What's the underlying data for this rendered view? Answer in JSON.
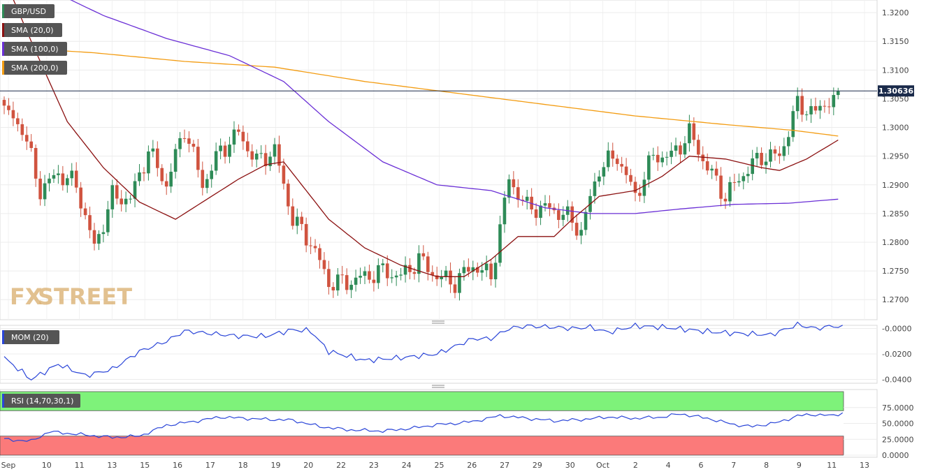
{
  "symbol": "GBP/USD",
  "indicators": {
    "sma20": {
      "label": "SMA (20,0)",
      "color": "#8b1010"
    },
    "sma100": {
      "label": "SMA (100,0)",
      "color": "#6a2fd6"
    },
    "sma200": {
      "label": "SMA (200,0)",
      "color": "#f39c12"
    },
    "mom": {
      "label": "MOM (20)",
      "color": "#2a45d8"
    },
    "rsi": {
      "label": "RSI (14,70,30,1)",
      "color": "#2a45d8"
    }
  },
  "watermark": {
    "fx": "FX",
    "street": "STREET"
  },
  "colors": {
    "up": "#2e8b57",
    "down": "#d0533f",
    "price_line": "#1a2a4a",
    "overbought": "#7ef27a",
    "oversold": "#fb7a7a"
  },
  "chart_data": [
    {
      "type": "candlestick",
      "title": "GBP/USD",
      "current_price": 1.30636,
      "current_price_label": "1.30636",
      "ylim": [
        1.2665,
        1.3222
      ],
      "y_ticks": [
        "1.3200",
        "1.3150",
        "1.3100",
        "1.3050",
        "1.3000",
        "1.2950",
        "1.2900",
        "1.2850",
        "1.2800",
        "1.2750",
        "1.2700"
      ],
      "x_ticks": [
        "Sep",
        "10",
        "11",
        "13",
        "15",
        "16",
        "17",
        "18",
        "19",
        "20",
        "22",
        "23",
        "24",
        "25",
        "26",
        "27",
        "29",
        "30",
        "Oct",
        "2",
        "4",
        "6",
        "7",
        "8",
        "9",
        "11",
        "13"
      ],
      "series_keypoints": {
        "close": [
          [
            0,
            1.303
          ],
          [
            4,
            1.3
          ],
          [
            8,
            1.289
          ],
          [
            12,
            1.292
          ],
          [
            16,
            1.29
          ],
          [
            20,
            1.279
          ],
          [
            24,
            1.288
          ],
          [
            28,
            1.2875
          ],
          [
            32,
            1.296
          ],
          [
            36,
            1.29
          ],
          [
            40,
            1.3
          ],
          [
            44,
            1.29
          ],
          [
            48,
            1.296
          ],
          [
            52,
            1.299
          ],
          [
            56,
            1.294
          ],
          [
            60,
            1.296
          ],
          [
            64,
            1.284
          ],
          [
            68,
            1.28
          ],
          [
            72,
            1.273
          ],
          [
            76,
            1.273
          ],
          [
            80,
            1.274
          ],
          [
            84,
            1.275
          ],
          [
            88,
            1.274
          ],
          [
            92,
            1.277
          ],
          [
            96,
            1.274
          ],
          [
            100,
            1.273
          ],
          [
            104,
            1.276
          ],
          [
            108,
            1.274
          ],
          [
            112,
            1.291
          ],
          [
            116,
            1.286
          ],
          [
            120,
            1.286
          ],
          [
            124,
            1.285
          ],
          [
            128,
            1.282
          ],
          [
            132,
            1.293
          ],
          [
            136,
            1.295
          ],
          [
            140,
            1.288
          ],
          [
            144,
            1.295
          ],
          [
            148,
            1.295
          ],
          [
            152,
            1.299
          ],
          [
            156,
            1.293
          ],
          [
            160,
            1.288
          ],
          [
            164,
            1.292
          ],
          [
            168,
            1.295
          ],
          [
            172,
            1.295
          ],
          [
            176,
            1.304
          ],
          [
            180,
            1.3025
          ],
          [
            183,
            1.305
          ],
          [
            185,
            1.3063
          ]
        ],
        "sma20": [
          [
            0,
            1.326
          ],
          [
            6,
            1.315
          ],
          [
            14,
            1.301
          ],
          [
            22,
            1.293
          ],
          [
            30,
            1.287
          ],
          [
            38,
            1.284
          ],
          [
            44,
            1.287
          ],
          [
            52,
            1.291
          ],
          [
            58,
            1.2935
          ],
          [
            62,
            1.294
          ],
          [
            66,
            1.29
          ],
          [
            72,
            1.284
          ],
          [
            80,
            1.279
          ],
          [
            88,
            1.276
          ],
          [
            96,
            1.274
          ],
          [
            102,
            1.274
          ],
          [
            108,
            1.277
          ],
          [
            114,
            1.281
          ],
          [
            122,
            1.281
          ],
          [
            126,
            1.284
          ],
          [
            132,
            1.288
          ],
          [
            140,
            1.289
          ],
          [
            146,
            1.2915
          ],
          [
            152,
            1.295
          ],
          [
            160,
            1.2945
          ],
          [
            168,
            1.293
          ],
          [
            172,
            1.2925
          ],
          [
            178,
            1.2945
          ],
          [
            185,
            1.2978
          ]
        ],
        "sma100": [
          [
            0,
            1.3275
          ],
          [
            10,
            1.324
          ],
          [
            22,
            1.3195
          ],
          [
            36,
            1.3155
          ],
          [
            50,
            1.3125
          ],
          [
            62,
            1.308
          ],
          [
            72,
            1.301
          ],
          [
            84,
            1.294
          ],
          [
            96,
            1.29
          ],
          [
            108,
            1.289
          ],
          [
            120,
            1.286
          ],
          [
            130,
            1.285
          ],
          [
            140,
            1.285
          ],
          [
            150,
            1.2858
          ],
          [
            162,
            1.2866
          ],
          [
            174,
            1.2868
          ],
          [
            185,
            1.2875
          ]
        ],
        "sma200": [
          [
            0,
            1.314
          ],
          [
            20,
            1.313
          ],
          [
            40,
            1.3115
          ],
          [
            60,
            1.3105
          ],
          [
            80,
            1.308
          ],
          [
            100,
            1.306
          ],
          [
            120,
            1.304
          ],
          [
            140,
            1.302
          ],
          [
            160,
            1.3005
          ],
          [
            175,
            1.2995
          ],
          [
            185,
            1.2985
          ]
        ]
      }
    },
    {
      "type": "line",
      "title": "MOM (20)",
      "ylim": [
        -0.043,
        0.0025
      ],
      "y_ticks": [
        "-0.0000",
        "-0.0200",
        "-0.0400"
      ],
      "series_keypoints": {
        "mom": [
          [
            0,
            -0.023
          ],
          [
            6,
            -0.04
          ],
          [
            12,
            -0.028
          ],
          [
            18,
            -0.037
          ],
          [
            24,
            -0.032
          ],
          [
            30,
            -0.018
          ],
          [
            36,
            -0.01
          ],
          [
            40,
            -0.002
          ],
          [
            46,
            -0.004
          ],
          [
            52,
            -0.006
          ],
          [
            58,
            -0.006
          ],
          [
            64,
            -0.001
          ],
          [
            68,
            -0.002
          ],
          [
            72,
            -0.018
          ],
          [
            80,
            -0.025
          ],
          [
            88,
            -0.023
          ],
          [
            96,
            -0.02
          ],
          [
            104,
            -0.008
          ],
          [
            108,
            -0.008
          ],
          [
            112,
            0.0
          ],
          [
            116,
            0.002
          ],
          [
            122,
            0.001
          ],
          [
            126,
            0.0
          ],
          [
            130,
            0.001
          ],
          [
            134,
            -0.003
          ],
          [
            140,
            0.002
          ],
          [
            146,
            0.001
          ],
          [
            152,
            -0.001
          ],
          [
            158,
            -0.003
          ],
          [
            164,
            -0.004
          ],
          [
            170,
            -0.005
          ],
          [
            176,
            0.003
          ],
          [
            180,
            0.0
          ],
          [
            184,
            0.002
          ],
          [
            186,
            0.001
          ]
        ]
      }
    },
    {
      "type": "line",
      "title": "RSI (14,70,30,1)",
      "ylim": [
        0,
        100
      ],
      "overbought": 70,
      "oversold": 30,
      "y_ticks": [
        "75.0000",
        "50.0000",
        "25.0000",
        "0.0000"
      ],
      "series_keypoints": {
        "rsi": [
          [
            0,
            25
          ],
          [
            6,
            22
          ],
          [
            10,
            37
          ],
          [
            16,
            33
          ],
          [
            24,
            28
          ],
          [
            30,
            30
          ],
          [
            36,
            47
          ],
          [
            42,
            53
          ],
          [
            48,
            60
          ],
          [
            56,
            57
          ],
          [
            64,
            55
          ],
          [
            70,
            45
          ],
          [
            76,
            40
          ],
          [
            84,
            38
          ],
          [
            90,
            42
          ],
          [
            96,
            48
          ],
          [
            100,
            50
          ],
          [
            104,
            53
          ],
          [
            110,
            62
          ],
          [
            116,
            58
          ],
          [
            122,
            54
          ],
          [
            128,
            56
          ],
          [
            134,
            60
          ],
          [
            140,
            58
          ],
          [
            146,
            60
          ],
          [
            150,
            65
          ],
          [
            156,
            58
          ],
          [
            162,
            48
          ],
          [
            166,
            45
          ],
          [
            172,
            52
          ],
          [
            176,
            62
          ],
          [
            180,
            64
          ],
          [
            184,
            62
          ],
          [
            186,
            67
          ]
        ]
      }
    }
  ]
}
